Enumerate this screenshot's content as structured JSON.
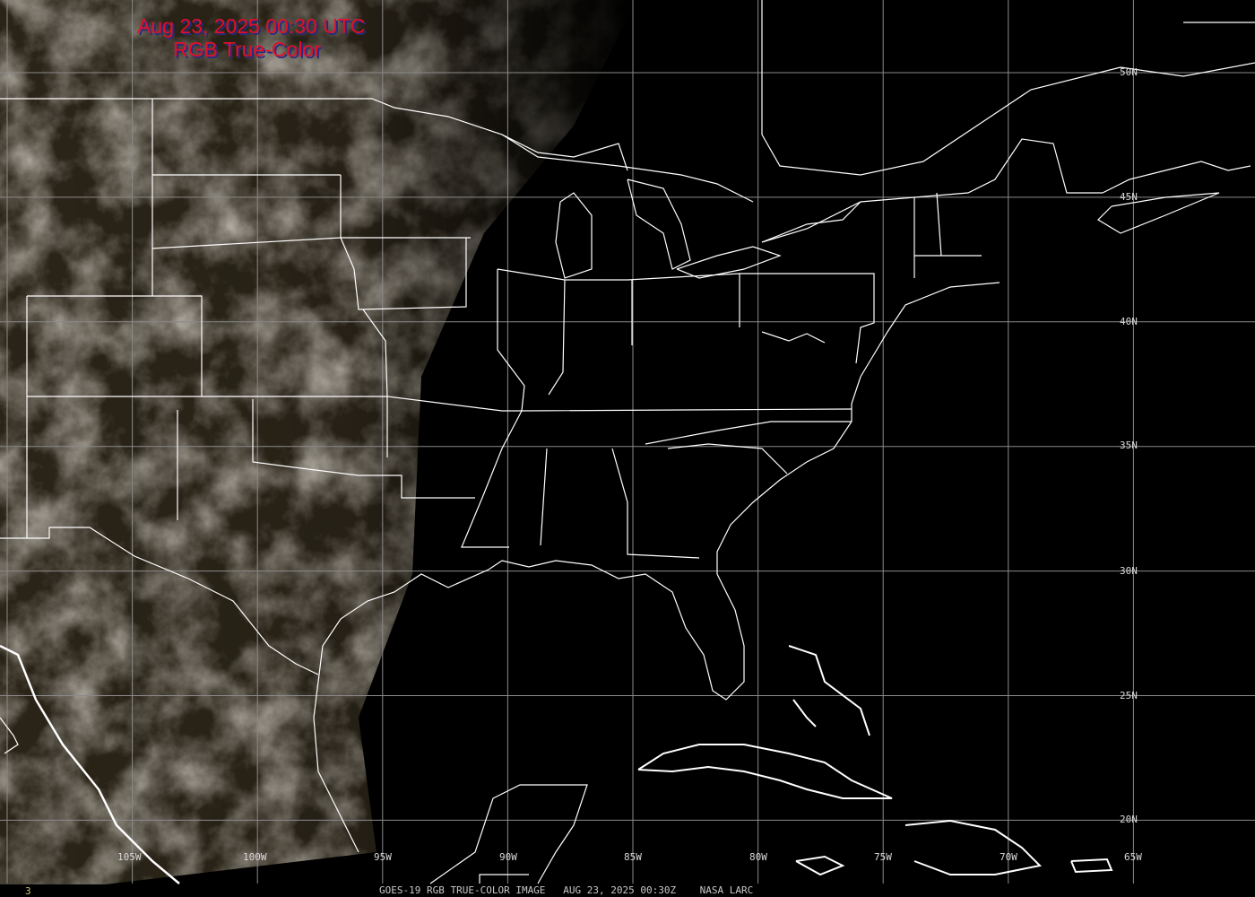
{
  "title": {
    "line1": "Aug 23, 2025 00:30 UTC",
    "line2": "RGB True-Color",
    "color": "#e0102a"
  },
  "longitude_labels": [
    "105W",
    "100W",
    "95W",
    "90W",
    "85W",
    "80W",
    "75W",
    "70W",
    "65W"
  ],
  "latitude_labels": [
    "50N",
    "45N",
    "40N",
    "35N",
    "30N",
    "25N",
    "20N"
  ],
  "footer": {
    "frame_number": "3",
    "caption": "GOES-19 RGB TRUE-COLOR IMAGE   AUG 23, 2025 00:30Z    NASA LARC"
  },
  "colors": {
    "background": "#000000",
    "grid": "#9a9a9a",
    "boundaries": "#ffffff",
    "clouds": "#8a8272"
  }
}
